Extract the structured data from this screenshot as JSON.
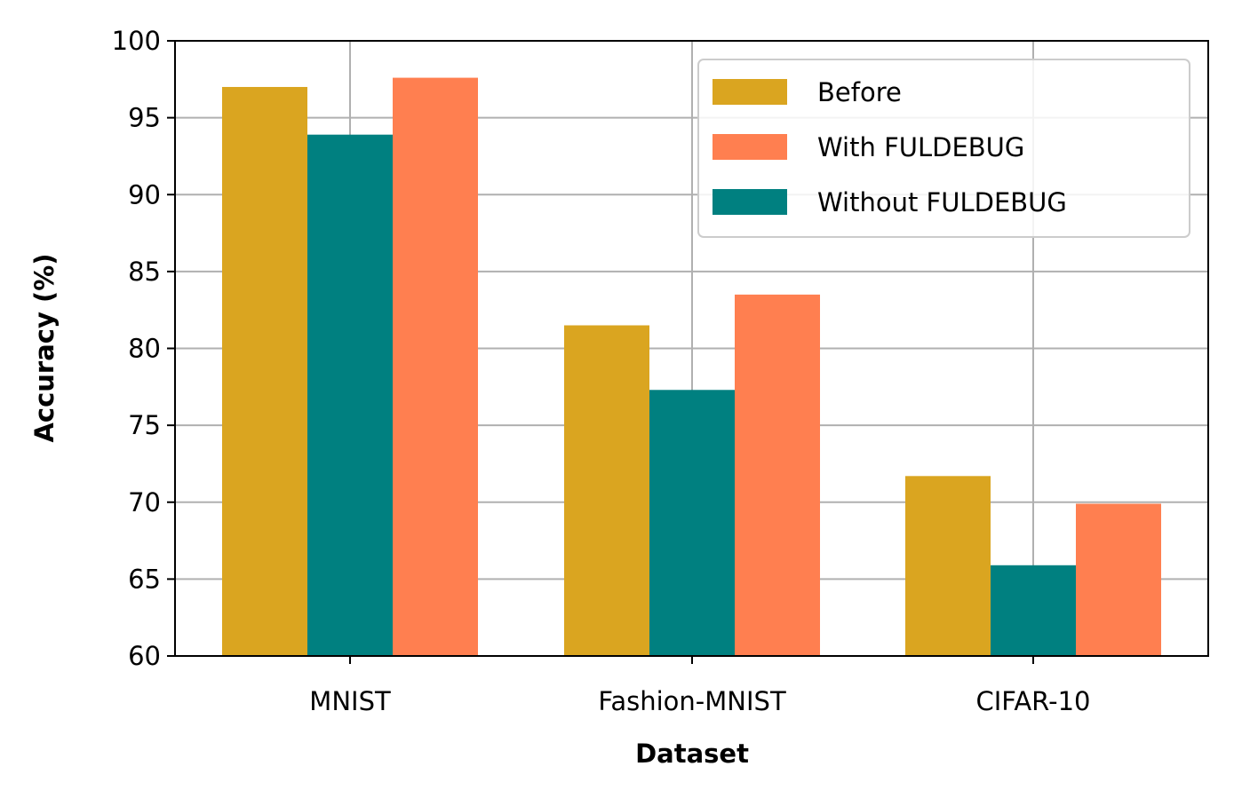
{
  "chart_data": {
    "type": "bar",
    "categories": [
      "MNIST",
      "Fashion-MNIST",
      "CIFAR-10"
    ],
    "series": [
      {
        "name": "Before",
        "color": "#daa520",
        "values": [
          97.0,
          81.5,
          71.7
        ]
      },
      {
        "name": "Without FULDEBUG",
        "color": "#008080",
        "values": [
          93.9,
          77.3,
          65.9
        ]
      },
      {
        "name": "With FULDEBUG",
        "color": "#ff7f50",
        "values": [
          97.6,
          83.5,
          69.9
        ]
      }
    ],
    "legend_order": [
      "Before",
      "With FULDEBUG",
      "Without FULDEBUG"
    ],
    "xlabel": "Dataset",
    "ylabel": "Accuracy (%)",
    "ylim": [
      60,
      100
    ],
    "yticks": [
      "60",
      "65",
      "70",
      "75",
      "80",
      "85",
      "90",
      "95",
      "100"
    ],
    "grid": true,
    "legend_position": "top-right"
  }
}
